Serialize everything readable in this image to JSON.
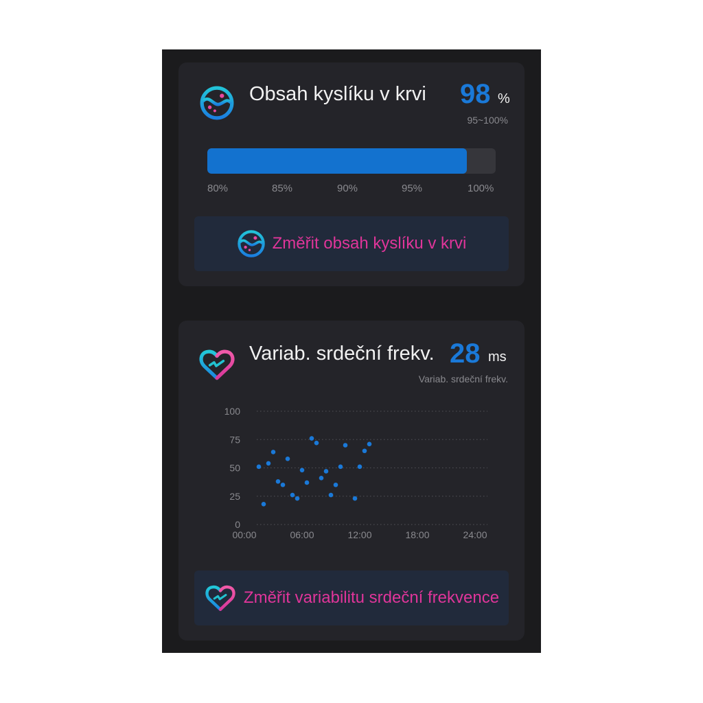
{
  "spo2": {
    "title": "Obsah kyslíku v krvi",
    "value": "98",
    "unit": "%",
    "range": "95~100%",
    "progress": {
      "min": 80,
      "max": 100,
      "value": 98
    },
    "ticks": [
      "80%",
      "85%",
      "90%",
      "95%",
      "100%"
    ],
    "button_label": "Změřit obsah kyslíku v krvi",
    "icon": "oxygen-drop-icon"
  },
  "hrv": {
    "title": "Variab. srdeční frekv.",
    "value": "28",
    "unit": "ms",
    "subtitle": "Variab. srdeční frekv.",
    "button_label": "Změřit variabilitu srdeční frekvence",
    "icon": "heart-pulse-icon"
  },
  "colors": {
    "accent": "#1a79d8",
    "button_text": "#e0359a",
    "card": "#242429",
    "background": "#1b1b1d",
    "button_bg": "#212a3b"
  },
  "chart_data": {
    "type": "scatter",
    "x_unit": "hours",
    "xlim": [
      0,
      24
    ],
    "ylim": [
      0,
      100
    ],
    "x_ticks": [
      "00:00",
      "06:00",
      "12:00",
      "18:00",
      "24:00"
    ],
    "y_ticks": [
      "0",
      "25",
      "50",
      "75",
      "100"
    ],
    "grid": "horizontal dotted",
    "color": "#1a79d8",
    "x": [
      1.5,
      2,
      2.5,
      3,
      3.5,
      4,
      4.5,
      5,
      5.5,
      6,
      6.5,
      7,
      7.5,
      8,
      8.5,
      9,
      9.5,
      10,
      10.5,
      11.5,
      12,
      12.5,
      13
    ],
    "y": [
      51,
      18,
      54,
      64,
      38,
      35,
      58,
      26,
      23,
      48,
      37,
      76,
      72,
      41,
      47,
      26,
      35,
      51,
      70,
      23,
      51,
      65,
      71
    ]
  }
}
